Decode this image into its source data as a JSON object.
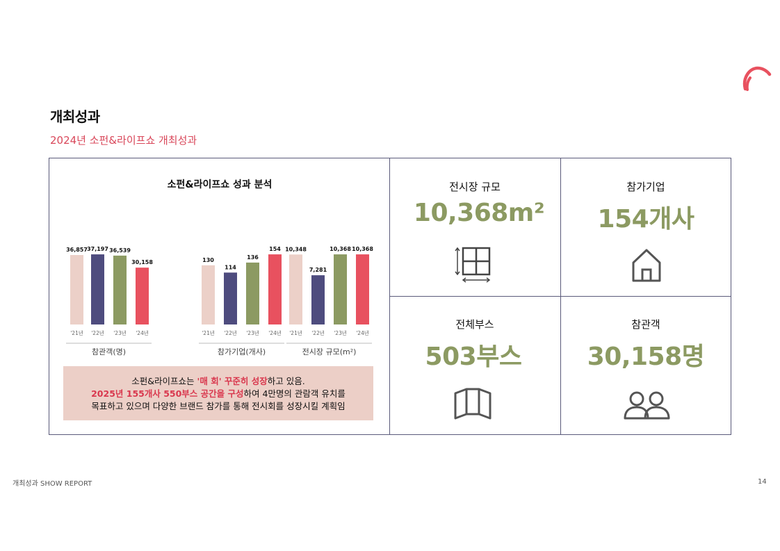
{
  "page": {
    "title": "개최성과",
    "subtitle": "2024년 소펀&라이프쇼 개최성과"
  },
  "colors": {
    "accent_red": "#e8515f",
    "green": "#8c9a62",
    "navy": "#4e4c7e",
    "pink": "#ecd0c8"
  },
  "chart_title": "소펀&라이프쇼 성과 분석",
  "chart_data": [
    {
      "type": "bar",
      "categories": [
        "'21년",
        "'22년",
        "'23년",
        "'24년"
      ],
      "values": [
        36857,
        37197,
        36539,
        30158
      ],
      "value_labels": [
        "36,857",
        "37,197",
        "36,539",
        "30,158"
      ],
      "xlabel": "참관객(명)"
    },
    {
      "type": "bar",
      "categories": [
        "'21년",
        "'22년",
        "'23년",
        "'24년"
      ],
      "values": [
        130,
        114,
        136,
        154
      ],
      "value_labels": [
        "130",
        "114",
        "136",
        "154"
      ],
      "xlabel": "참가기업(개사)"
    },
    {
      "type": "bar",
      "categories": [
        "'21년",
        "'22년",
        "'23년",
        "'24년"
      ],
      "values": [
        10348,
        7281,
        10368,
        10368
      ],
      "value_labels": [
        "10,348",
        "7,281",
        "10,368",
        "10,368"
      ],
      "xlabel": "전시장 규모(m²)"
    }
  ],
  "callout": {
    "line1_a": "소펀&라이프쇼는 ",
    "line1_b": "'매 회' 꾸준히 성장",
    "line1_c": "하고 있음.",
    "line2_a": "2025년 155개사 550부스 공간을 구성",
    "line2_b": "하여 4만명의 관람객 유치를",
    "line3": "목표하고 있으며 다양한 브랜드 참가를 통해 전시회를 성장시킬 계획임"
  },
  "kpis": [
    {
      "label": "전시장 규모",
      "value": "10,368m²",
      "icon": "floor-plan-icon"
    },
    {
      "label": "참가기업",
      "value": "154개사",
      "icon": "house-icon"
    },
    {
      "label": "전체부스",
      "value": "503부스",
      "icon": "booth-panel-icon"
    },
    {
      "label": "참관객",
      "value": "30,158명",
      "icon": "people-icon"
    }
  ],
  "footer": {
    "left": "개최성과 SHOW REPORT",
    "page_number": "14"
  }
}
